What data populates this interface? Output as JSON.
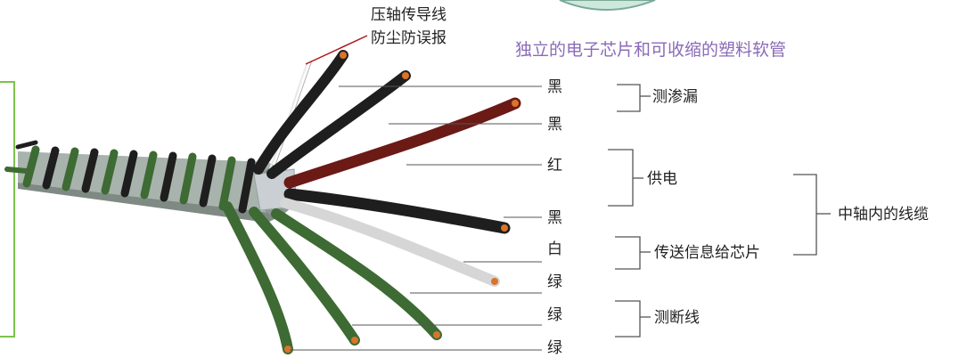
{
  "top_note": {
    "line1": "压轴传导线",
    "line2": "防尘防误报"
  },
  "subtitle": "独立的电子芯片和可收缩的塑料软管",
  "wire_labels": [
    "黑",
    "黑",
    "红",
    "黑",
    "白",
    "绿",
    "绿",
    "绿"
  ],
  "groups": {
    "leak": "测渗漏",
    "power": "供电",
    "chip": "传送信息给芯片",
    "break": "测断线",
    "core": "中轴内的线缆"
  },
  "colors": {
    "black_wire": "#1e1e1e",
    "red_wire": "#6b1a16",
    "white_wire": "#d6d6d6",
    "green_wire": "#3d6b33",
    "copper_tip": "#d9742b",
    "subtitle": "#8a6bb8",
    "frame_green": "#7dc24b"
  }
}
